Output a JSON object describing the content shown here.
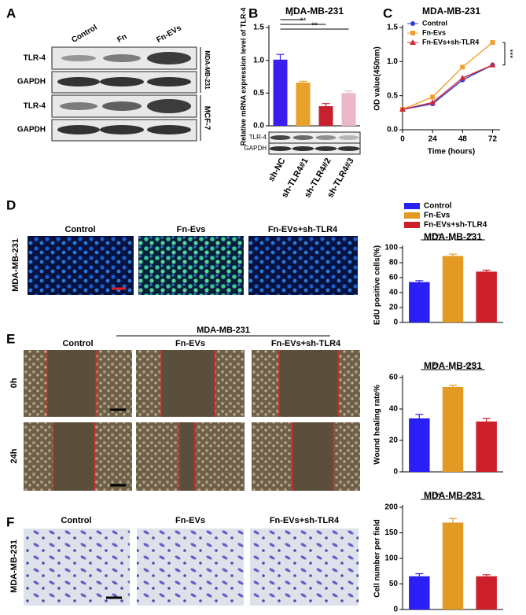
{
  "panels": {
    "A": {
      "letter": "A",
      "columns": [
        "Control",
        "Fn",
        "Fn-EVs"
      ],
      "rows": [
        "TLR-4",
        "GAPDH",
        "TLR-4",
        "GAPDH"
      ],
      "cell_lines": [
        "MDA-MB-231",
        "MCF-7"
      ]
    },
    "B": {
      "letter": "B",
      "blot_rows": [
        "TLR-4",
        "GAPDH"
      ]
    },
    "C": {
      "letter": "C"
    },
    "D": {
      "letter": "D",
      "columns": [
        "Control",
        "Fn-Evs",
        "Fn-EVs+sh-TLR4"
      ],
      "row_label": "MDA-MB-231"
    },
    "E": {
      "letter": "E",
      "header": "MDA-MB-231",
      "columns": [
        "Control",
        "Fn-EVs",
        "Fn-EVs+sh-TLR4"
      ],
      "rows": [
        "0h",
        "24h"
      ]
    },
    "F": {
      "letter": "F",
      "columns": [
        "Control",
        "Fn-EVs",
        "Fn-EVs+sh-TLR4"
      ],
      "row_label": "MDA-MB-231"
    }
  },
  "chart_data": [
    {
      "type": "bar",
      "title": "MDA-MB-231",
      "ylabel": "Relative mRNA expression level of TLR-4",
      "categories": [
        "sh-NC",
        "sh-TLR4#1",
        "sh-TLR4#2",
        "sh-TLR4#3"
      ],
      "values": [
        1.01,
        0.66,
        0.3,
        0.5
      ],
      "errors": [
        0.08,
        0.02,
        0.04,
        0.03
      ],
      "colors": [
        "#3a1ef0",
        "#e8a12a",
        "#c8202f",
        "#eab8c8"
      ],
      "ylim": [
        0,
        1.5
      ],
      "yticks": [
        {
          "value": 0,
          "label": "0.0"
        },
        {
          "value": 0.5,
          "label": "0.5"
        },
        {
          "value": 1,
          "label": "1.0"
        },
        {
          "value": 1.5,
          "label": "1.5"
        }
      ],
      "annotations": [
        "*",
        "**",
        "**"
      ]
    },
    {
      "type": "line",
      "title": "MDA-MB-231",
      "xlabel": "Time (hours)",
      "ylabel": "OD value(450nm)",
      "x": [
        0,
        24,
        48,
        72
      ],
      "xlim": [
        0,
        78
      ],
      "xticks": [
        0,
        24,
        48,
        72
      ],
      "ylim": [
        0,
        1.5
      ],
      "yticks": [
        {
          "value": 0,
          "label": "0.0"
        },
        {
          "value": 0.5,
          "label": "0.5"
        },
        {
          "value": 1,
          "label": "1.0"
        },
        {
          "value": 1.5,
          "label": "1.5"
        }
      ],
      "series": [
        {
          "name": "Control",
          "color": "#2b3fd6",
          "marker": "circle",
          "values": [
            0.3,
            0.38,
            0.73,
            0.95
          ]
        },
        {
          "name": "Fn-Evs",
          "color": "#f0a030",
          "marker": "square",
          "values": [
            0.3,
            0.48,
            0.92,
            1.28
          ]
        },
        {
          "name": "Fn-EVs+sh-TLR4",
          "color": "#d02a3a",
          "marker": "triangle",
          "values": [
            0.3,
            0.4,
            0.76,
            0.95
          ]
        }
      ],
      "legend": "upper left",
      "annotations": [
        "***"
      ]
    },
    {
      "type": "bar",
      "title": "MDA-MB-231",
      "ylabel": "EdU positive cells(%)",
      "categories": [
        "Control",
        "Fn-Evs",
        "Fn-EVs+sh-TLR4"
      ],
      "legend": "top",
      "values": [
        54,
        89,
        68
      ],
      "errors": [
        2,
        2.5,
        2
      ],
      "colors": [
        "#2a1ff5",
        "#e39a24",
        "#cc1f2a"
      ],
      "ylim": [
        0,
        100
      ],
      "yticks": [
        0,
        20,
        40,
        60,
        80,
        100
      ],
      "annotations": [
        "***",
        "**"
      ]
    },
    {
      "type": "bar",
      "title": "MDA-MB-231",
      "ylabel": "Wound healing rate%",
      "values": [
        34,
        54,
        32
      ],
      "errors": [
        2.5,
        1,
        1.8
      ],
      "colors": [
        "#2a1ff5",
        "#e39a24",
        "#cc1f2a"
      ],
      "ylim": [
        0,
        60
      ],
      "yticks": [
        0,
        20,
        40,
        60
      ],
      "annotations": [
        "**",
        "***"
      ]
    },
    {
      "type": "bar",
      "title": "MDA-MB-231",
      "ylabel": "Cell number per field",
      "values": [
        65,
        170,
        65
      ],
      "errors": [
        5,
        8,
        3
      ],
      "colors": [
        "#2a1ff5",
        "#e39a24",
        "#cc1f2a"
      ],
      "ylim": [
        0,
        200
      ],
      "yticks": [
        0,
        50,
        100,
        150,
        200
      ],
      "annotations": [
        "***",
        "***"
      ]
    }
  ]
}
